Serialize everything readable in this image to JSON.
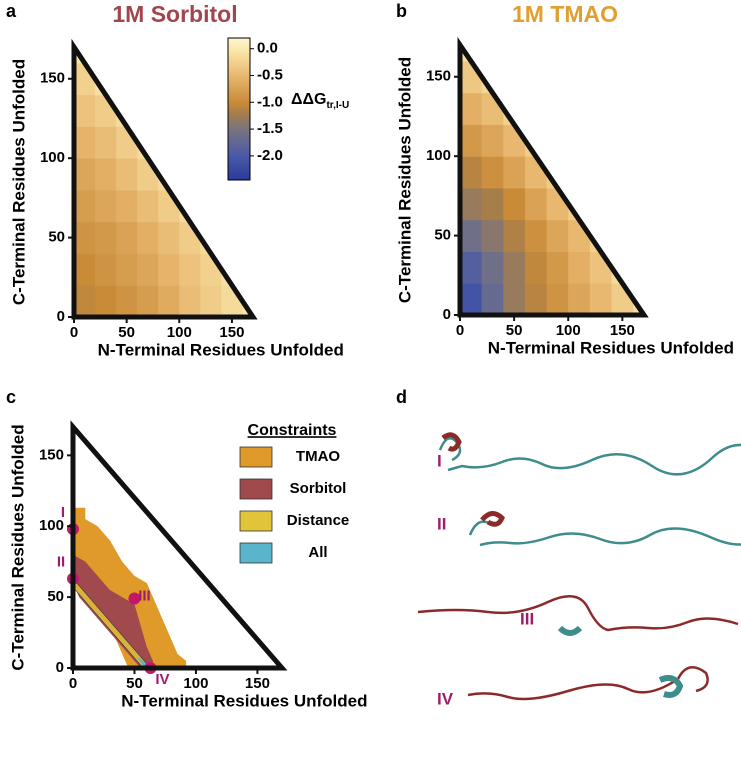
{
  "chart_data": [
    {
      "type": "heatmap",
      "panel_label": "a",
      "title": "1M Sorbitol",
      "title_color": "#a0464e",
      "x_label": "N-Terminal Residues Unfolded",
      "y_label": "C-Terminal Residues Unfolded",
      "xlim": [
        0,
        170
      ],
      "ylim": [
        0,
        170
      ],
      "xticks": [
        0,
        50,
        100,
        150
      ],
      "yticks": [
        0,
        50,
        100,
        150
      ],
      "bins": [
        0,
        20,
        40,
        60,
        80,
        100,
        120,
        140,
        160,
        180
      ],
      "values": [
        [
          -1.05,
          -1.0,
          -0.9,
          -0.8,
          -0.65,
          -0.45,
          -0.3,
          -0.15,
          -0.05
        ],
        [
          -1.0,
          -0.9,
          -0.8,
          -0.7,
          -0.55,
          -0.4,
          -0.25,
          -0.1
        ],
        [
          -0.9,
          -0.85,
          -0.75,
          -0.6,
          -0.45,
          -0.3,
          -0.15
        ],
        [
          -0.8,
          -0.7,
          -0.6,
          -0.45,
          -0.3,
          -0.15
        ],
        [
          -0.7,
          -0.6,
          -0.45,
          -0.3,
          -0.15
        ],
        [
          -0.55,
          -0.45,
          -0.3,
          -0.15
        ],
        [
          -0.4,
          -0.3,
          -0.15
        ],
        [
          -0.25,
          -0.1
        ],
        [
          -0.05
        ]
      ],
      "clim": [
        -2.45,
        0.2
      ],
      "colormap": [
        {
          "value": -2.45,
          "color": "#2a3b9a"
        },
        {
          "value": -2.0,
          "color": "#4a5aa8"
        },
        {
          "value": -1.5,
          "color": "#7a7480"
        },
        {
          "value": -1.2,
          "color": "#a67e4a"
        },
        {
          "value": -1.0,
          "color": "#c98b38"
        },
        {
          "value": -0.5,
          "color": "#e8b870"
        },
        {
          "value": 0,
          "color": "#fbeaae"
        },
        {
          "value": 0.2,
          "color": "#fdf6d0"
        }
      ],
      "colorbar": {
        "ticks": [
          {
            "value": 0,
            "label": "0.0"
          },
          {
            "value": -0.5,
            "label": "-0.5"
          },
          {
            "value": -1,
            "label": "-1.0"
          },
          {
            "value": -1.5,
            "label": "-1.5"
          },
          {
            "value": -2,
            "label": "-2.0"
          }
        ],
        "label": "ΔΔG",
        "label_sub": "tr,I-U"
      }
    },
    {
      "type": "heatmap",
      "panel_label": "b",
      "title": "1M TMAO",
      "title_color": "#e0a030",
      "x_label": "N-Terminal Residues Unfolded",
      "y_label": "C-Terminal Residues Unfolded",
      "xlim": [
        0,
        170
      ],
      "ylim": [
        0,
        170
      ],
      "xticks": [
        0,
        50,
        100,
        150
      ],
      "yticks": [
        0,
        50,
        100,
        150
      ],
      "bins": [
        0,
        20,
        40,
        60,
        80,
        100,
        120,
        140,
        160,
        180
      ],
      "values": [
        [
          -2.1,
          -1.7,
          -1.3,
          -1.1,
          -0.9,
          -0.7,
          -0.5,
          -0.3,
          -0.1
        ],
        [
          -1.9,
          -1.6,
          -1.3,
          -1.05,
          -0.85,
          -0.6,
          -0.4,
          -0.15
        ],
        [
          -1.6,
          -1.4,
          -1.15,
          -0.95,
          -0.7,
          -0.5,
          -0.25
        ],
        [
          -1.3,
          -1.2,
          -1.0,
          -0.75,
          -0.5,
          -0.3
        ],
        [
          -1.1,
          -0.95,
          -0.75,
          -0.5,
          -0.3
        ],
        [
          -0.85,
          -0.7,
          -0.5,
          -0.3
        ],
        [
          -0.6,
          -0.45,
          -0.25
        ],
        [
          -0.35,
          -0.2
        ],
        [
          -0.1
        ]
      ],
      "clim": [
        -2.45,
        0.2
      ],
      "colormap": [
        {
          "value": -2.45,
          "color": "#2a3b9a"
        },
        {
          "value": -2.0,
          "color": "#4a5aa8"
        },
        {
          "value": -1.5,
          "color": "#7a7480"
        },
        {
          "value": -1.2,
          "color": "#a67e4a"
        },
        {
          "value": -1.0,
          "color": "#c98b38"
        },
        {
          "value": -0.5,
          "color": "#e8b870"
        },
        {
          "value": 0,
          "color": "#fbeaae"
        },
        {
          "value": 0.2,
          "color": "#fdf6d0"
        }
      ]
    },
    {
      "type": "region",
      "panel_label": "c",
      "x_label": "N-Terminal Residues Unfolded",
      "y_label": "C-Terminal Residues Unfolded",
      "xlim": [
        0,
        170
      ],
      "ylim": [
        0,
        170
      ],
      "xticks": [
        0,
        50,
        100,
        150
      ],
      "yticks": [
        0,
        50,
        100,
        150
      ],
      "legend_title": "Constraints",
      "series": [
        {
          "name": "TMAO",
          "color": "#e09a2a",
          "x": [
            0,
            10,
            10,
            20,
            30,
            40,
            50,
            60,
            65,
            70,
            80,
            85,
            92,
            92,
            45,
            40,
            30,
            20,
            10,
            0
          ],
          "y": [
            113,
            113,
            105,
            100,
            90,
            75,
            65,
            60,
            50,
            40,
            20,
            10,
            5,
            0,
            0,
            10,
            30,
            50,
            70,
            80
          ]
        },
        {
          "name": "Sorbitol",
          "color": "#a04a4e",
          "x": [
            0,
            10,
            20,
            30,
            40,
            50,
            55,
            60,
            65,
            65,
            55,
            45,
            35,
            25,
            15,
            5,
            0
          ],
          "y": [
            80,
            75,
            65,
            55,
            50,
            45,
            30,
            15,
            5,
            0,
            0,
            10,
            20,
            30,
            40,
            50,
            60
          ]
        },
        {
          "name": "Distance",
          "color": "#e2c43a",
          "x": [
            0,
            63,
            57,
            0
          ],
          "y": [
            63,
            0,
            0,
            57
          ]
        },
        {
          "name": "All",
          "color": "#5ab4cc",
          "x": [
            52,
            60,
            64,
            58
          ],
          "y": [
            8,
            3,
            0,
            0
          ]
        }
      ],
      "points": {
        "x": [
          0,
          0,
          50,
          63
        ],
        "y": [
          98,
          63,
          49,
          0
        ],
        "labels": [
          "I",
          "II",
          "III",
          "IV"
        ],
        "color": "#c2186b"
      }
    }
  ],
  "panel_d": {
    "panel_label": "d",
    "labels": [
      "I",
      "II",
      "III",
      "IV"
    ]
  }
}
